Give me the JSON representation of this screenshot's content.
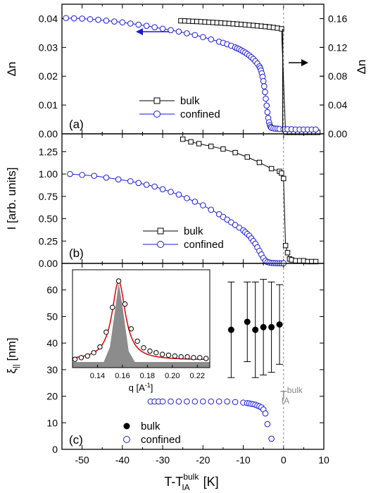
{
  "chart_data": [
    {
      "panel_label": "(a)",
      "type": "scatter",
      "xlim": [
        -55,
        10
      ],
      "ylim": [
        0,
        0.045
      ],
      "ylim_right": [
        0,
        0.18
      ],
      "ylabel": "Δn",
      "ylabel_right": "Δn",
      "yticks": [
        "0.00",
        "0.01",
        "0.02",
        "0.03",
        "0.04"
      ],
      "yticks_right": [
        "0.00",
        "0.04",
        "0.08",
        "0.12",
        "0.16"
      ],
      "arrow_left": "←",
      "arrow_right": "→",
      "series": [
        {
          "name": "bulk",
          "axis": "right",
          "marker": "square",
          "color": "#000000",
          "line": true,
          "x": [
            -25.5,
            -24.5,
            -23.5,
            -22.5,
            -21.5,
            -20.5,
            -19.5,
            -18.5,
            -17.5,
            -16.5,
            -15.5,
            -14.5,
            -13.5,
            -12.5,
            -11.5,
            -10.5,
            -9.5,
            -8.5,
            -7.5,
            -6.5,
            -5.5,
            -4.5,
            -3.5,
            -2.5,
            -1.5,
            -0.5,
            0.5,
            1.5,
            2.5,
            3.5,
            4.5,
            5.5,
            6.5,
            7.5,
            8.5
          ],
          "y": [
            0.157,
            0.1568,
            0.1565,
            0.1562,
            0.156,
            0.1557,
            0.1554,
            0.155,
            0.1547,
            0.1543,
            0.154,
            0.1536,
            0.1532,
            0.1528,
            0.1524,
            0.152,
            0.1515,
            0.151,
            0.1505,
            0.15,
            0.1495,
            0.149,
            0.1484,
            0.1477,
            0.1468,
            0.1458,
            0.002,
            0.002,
            0.002,
            0.002,
            0.002,
            0.002,
            0.002,
            0.002,
            0.002
          ]
        },
        {
          "name": "confined",
          "axis": "left",
          "marker": "circle",
          "color": "#1a1ad6",
          "line": true,
          "x": [
            -54,
            -52,
            -50,
            -48,
            -46,
            -44,
            -42,
            -40,
            -38,
            -36,
            -34,
            -32,
            -30,
            -28,
            -26,
            -24,
            -22,
            -20,
            -18,
            -16,
            -15,
            -14,
            -13,
            -12,
            -11.5,
            -11,
            -10.5,
            -10,
            -9.5,
            -9,
            -8.5,
            -8,
            -7.5,
            -7,
            -6.5,
            -6,
            -5.8,
            -5.6,
            -5.4,
            -5.2,
            -5,
            -4.8,
            -4.6,
            -4.4,
            -4.2,
            -4,
            -3.8,
            -3.6,
            -3.4,
            -3.2,
            -3,
            -2.5,
            -2,
            -1.5,
            -1,
            0,
            1,
            2,
            3,
            4,
            5,
            6,
            7,
            8
          ],
          "y": [
            0.0402,
            0.0401,
            0.04,
            0.0398,
            0.0396,
            0.0393,
            0.039,
            0.0387,
            0.0383,
            0.0379,
            0.0375,
            0.037,
            0.0365,
            0.036,
            0.0355,
            0.0349,
            0.0343,
            0.0336,
            0.0328,
            0.032,
            0.0316,
            0.0311,
            0.0306,
            0.03,
            0.0297,
            0.0294,
            0.029,
            0.0286,
            0.0282,
            0.0277,
            0.0272,
            0.0266,
            0.026,
            0.0252,
            0.0244,
            0.0234,
            0.0228,
            0.022,
            0.021,
            0.0198,
            0.0183,
            0.0165,
            0.0145,
            0.0122,
            0.0098,
            0.0075,
            0.0055,
            0.004,
            0.003,
            0.0024,
            0.0021,
            0.0019,
            0.0018,
            0.0018,
            0.0017,
            0.0016,
            0.0016,
            0.0016,
            0.0015,
            0.0015,
            0.0015,
            0.0015,
            0.0015,
            0.0015
          ]
        }
      ]
    },
    {
      "panel_label": "(b)",
      "type": "scatter",
      "xlim": [
        -55,
        10
      ],
      "ylim": [
        0,
        1.45
      ],
      "ylabel": "I  [arb. units]",
      "yticks": [
        "0.00",
        "0.25",
        "0.50",
        "0.75",
        "1.00",
        "1.25"
      ],
      "series": [
        {
          "name": "bulk",
          "marker": "square",
          "color": "#000000",
          "line": true,
          "x": [
            -25,
            -23,
            -21,
            -18,
            -15,
            -12,
            -9,
            -6,
            -3,
            -1,
            -0.5,
            0,
            0.5,
            1,
            1.5,
            2,
            3,
            4,
            5,
            6,
            7,
            8
          ],
          "y": [
            1.39,
            1.36,
            1.34,
            1.31,
            1.28,
            1.24,
            1.19,
            1.13,
            1.06,
            1.03,
            1.01,
            0.95,
            0.2,
            0.12,
            0.05,
            0.04,
            0.03,
            0.03,
            0.03,
            0.02,
            0.02,
            0.02
          ]
        },
        {
          "name": "confined",
          "marker": "circle",
          "color": "#1a1ad6",
          "line": true,
          "x": [
            -53,
            -50,
            -47,
            -44,
            -41,
            -38,
            -36,
            -34,
            -32,
            -30,
            -28,
            -26,
            -24,
            -22,
            -20,
            -18,
            -16,
            -15,
            -14,
            -13,
            -12,
            -11,
            -10,
            -9.5,
            -9,
            -8.5,
            -8,
            -7.5,
            -7,
            -6.5,
            -6,
            -5.5,
            -5,
            -4.5,
            -4,
            -3.5,
            -3,
            -2.5,
            -2,
            -1.5,
            -1,
            -0.5,
            0
          ],
          "y": [
            1.0,
            0.99,
            0.98,
            0.96,
            0.94,
            0.92,
            0.9,
            0.88,
            0.86,
            0.83,
            0.8,
            0.77,
            0.73,
            0.69,
            0.65,
            0.6,
            0.55,
            0.52,
            0.49,
            0.46,
            0.43,
            0.4,
            0.37,
            0.35,
            0.33,
            0.31,
            0.28,
            0.25,
            0.22,
            0.18,
            0.14,
            0.1,
            0.06,
            0.03,
            0.015,
            0.01,
            0.006,
            0.004,
            0.003,
            0.002,
            0.002,
            0.001,
            0.001
          ]
        }
      ]
    },
    {
      "panel_label": "(c)",
      "type": "scatter",
      "xlim": [
        -55,
        10
      ],
      "ylim": [
        0,
        70
      ],
      "xlabel_prefix": "T-T",
      "xlabel_sub": "IA",
      "xlabel_sup": "bulk",
      "xlabel_suffix": " [K]",
      "xticks": [
        -50,
        -40,
        -30,
        -20,
        -10,
        0,
        10
      ],
      "ylabel_main": "ξ",
      "ylabel_sub": "||",
      "ylabel_unit": "  [nm]",
      "yticks": [
        "0",
        "10",
        "20",
        "30",
        "40",
        "50",
        "60"
      ],
      "annotation_T": "T",
      "annotation_sub": "IA",
      "annotation_sup": "bulk",
      "series": [
        {
          "name": "bulk",
          "marker": "filled-circle",
          "color": "#000000",
          "x": [
            -13,
            -9,
            -7,
            -5,
            -3,
            -1
          ],
          "y": [
            45,
            48,
            45,
            46,
            46,
            47
          ],
          "err": [
            18,
            15,
            18,
            18,
            17,
            15
          ]
        },
        {
          "name": "confined",
          "marker": "circle",
          "color": "#1a1ad6",
          "x": [
            -33,
            -32,
            -31,
            -30,
            -28,
            -26,
            -24,
            -22,
            -20,
            -18,
            -16,
            -14,
            -12,
            -10,
            -9,
            -8.5,
            -8,
            -7.5,
            -7,
            -6.5,
            -6,
            -5.5,
            -5,
            -4.5,
            -4,
            -3
          ],
          "y": [
            18,
            18,
            18,
            18,
            18,
            18,
            18,
            18,
            18,
            18,
            18,
            18,
            17.8,
            17.6,
            17.4,
            17.3,
            17.1,
            17,
            16.8,
            16.5,
            16.2,
            15.8,
            15,
            13.5,
            9.5,
            4
          ]
        }
      ],
      "inset": {
        "xlim": [
          0.12,
          0.23
        ],
        "xticks": [
          "0.14",
          "0.16",
          "0.18",
          "0.20",
          "0.22"
        ],
        "xlabel": "q  [A",
        "xlabel_sup": "-1",
        "xlabel_end": "]",
        "peak": 0.157,
        "points_x": [
          0.122,
          0.127,
          0.132,
          0.137,
          0.142,
          0.147,
          0.152,
          0.157,
          0.162,
          0.167,
          0.172,
          0.177,
          0.182,
          0.187,
          0.192,
          0.197,
          0.202,
          0.207,
          0.212,
          0.217,
          0.222,
          0.227
        ],
        "points_y": [
          0.05,
          0.07,
          0.09,
          0.13,
          0.2,
          0.38,
          0.68,
          1.0,
          0.72,
          0.42,
          0.27,
          0.19,
          0.15,
          0.13,
          0.11,
          0.1,
          0.09,
          0.08,
          0.08,
          0.07,
          0.07,
          0.06
        ]
      }
    }
  ]
}
